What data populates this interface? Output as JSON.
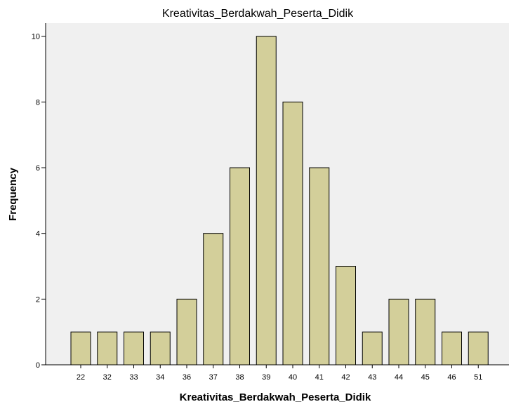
{
  "chart_data": {
    "type": "bar",
    "title": "Kreativitas_Berdakwah_Peserta_Didik",
    "xlabel": "Kreativitas_Berdakwah_Peserta_Didik",
    "ylabel": "Frequency",
    "categories": [
      "22",
      "32",
      "33",
      "34",
      "36",
      "37",
      "38",
      "39",
      "40",
      "41",
      "42",
      "43",
      "44",
      "45",
      "46",
      "51"
    ],
    "values": [
      1,
      1,
      1,
      1,
      2,
      4,
      6,
      10,
      8,
      6,
      3,
      1,
      2,
      2,
      1,
      1
    ],
    "ylim": [
      0,
      10.4
    ],
    "yticks": [
      "0",
      "2",
      "4",
      "6",
      "8",
      "10"
    ],
    "grid": false,
    "legend": "none"
  },
  "colors": {
    "bar_fill": "#d3cf9a",
    "bar_stroke": "#000000",
    "plot_background": "#f0f0f0",
    "axis": "#000000",
    "text": "#000000"
  }
}
